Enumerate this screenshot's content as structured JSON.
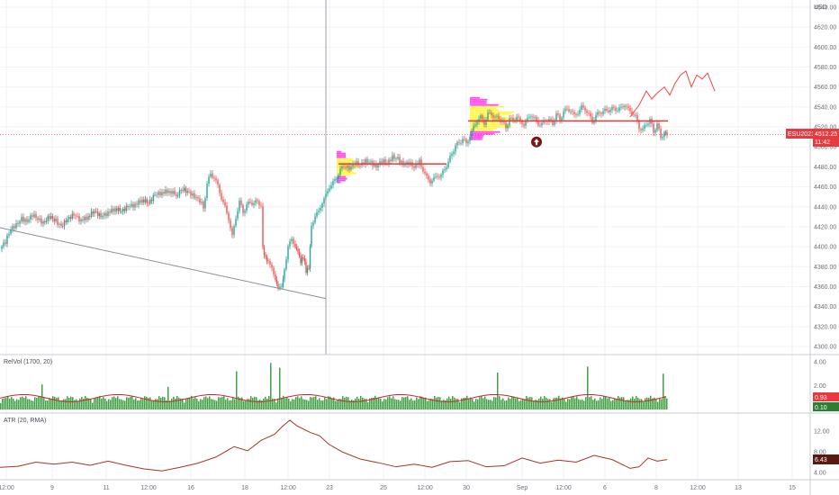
{
  "chart_data": [
    {
      "type": "candlestick",
      "symbol": "ESU2021",
      "currency": "USD",
      "last_price": "4512.25",
      "countdown": "11:42",
      "ylim": [
        4290,
        4650
      ],
      "y_ticks": [
        4300,
        4320,
        4340,
        4360,
        4380,
        4400,
        4420,
        4440,
        4460,
        4480,
        4500,
        4520,
        4540,
        4560,
        4580,
        4600,
        4620,
        4640
      ],
      "x_ticks": [
        "12:00",
        "9",
        "11",
        "12:00",
        "16",
        "18",
        "12:00",
        "23",
        "25",
        "12:00",
        "30",
        "Sep",
        "12:00",
        "6",
        "8",
        "12:00",
        "13",
        "15"
      ],
      "price_path": [
        [
          0,
          4398
        ],
        [
          6,
          4405
        ],
        [
          12,
          4418
        ],
        [
          18,
          4422
        ],
        [
          24,
          4428
        ],
        [
          30,
          4425
        ],
        [
          36,
          4432
        ],
        [
          42,
          4428
        ],
        [
          48,
          4424
        ],
        [
          55,
          4430
        ],
        [
          62,
          4426
        ],
        [
          68,
          4420
        ],
        [
          75,
          4428
        ],
        [
          82,
          4432
        ],
        [
          90,
          4426
        ],
        [
          98,
          4430
        ],
        [
          105,
          4436
        ],
        [
          112,
          4430
        ],
        [
          120,
          4434
        ],
        [
          128,
          4438
        ],
        [
          135,
          4436
        ],
        [
          142,
          4440
        ],
        [
          150,
          4442
        ],
        [
          158,
          4447
        ],
        [
          165,
          4444
        ],
        [
          172,
          4452
        ],
        [
          180,
          4454
        ],
        [
          188,
          4456
        ],
        [
          196,
          4452
        ],
        [
          203,
          4458
        ],
        [
          210,
          4454
        ],
        [
          216,
          4450
        ],
        [
          222,
          4446
        ],
        [
          226,
          4440
        ],
        [
          230,
          4462
        ],
        [
          234,
          4474
        ],
        [
          238,
          4468
        ],
        [
          242,
          4462
        ],
        [
          246,
          4448
        ],
        [
          250,
          4440
        ],
        [
          254,
          4428
        ],
        [
          258,
          4410
        ],
        [
          262,
          4430
        ],
        [
          266,
          4444
        ],
        [
          270,
          4436
        ],
        [
          274,
          4440
        ],
        [
          278,
          4446
        ],
        [
          282,
          4442
        ],
        [
          286,
          4447
        ],
        [
          290,
          4440
        ],
        [
          292,
          4398
        ],
        [
          295,
          4388
        ],
        [
          298,
          4384
        ],
        [
          302,
          4378
        ],
        [
          306,
          4368
        ],
        [
          309,
          4357
        ],
        [
          313,
          4360
        ],
        [
          316,
          4378
        ],
        [
          320,
          4400
        ],
        [
          324,
          4408
        ],
        [
          328,
          4400
        ],
        [
          331,
          4394
        ],
        [
          334,
          4384
        ],
        [
          337,
          4390
        ],
        [
          340,
          4376
        ],
        [
          343,
          4380
        ],
        [
          346,
          4422
        ],
        [
          350,
          4430
        ],
        [
          354,
          4436
        ],
        [
          358,
          4444
        ],
        [
          362,
          4452
        ],
        [
          366,
          4460
        ],
        [
          370,
          4464
        ],
        [
          374,
          4470
        ],
        [
          378,
          4476
        ],
        [
          382,
          4482
        ],
        [
          388,
          4478
        ],
        [
          394,
          4484
        ],
        [
          400,
          4482
        ],
        [
          406,
          4486
        ],
        [
          412,
          4484
        ],
        [
          418,
          4480
        ],
        [
          424,
          4486
        ],
        [
          430,
          4484
        ],
        [
          436,
          4490
        ],
        [
          442,
          4488
        ],
        [
          448,
          4482
        ],
        [
          454,
          4484
        ],
        [
          460,
          4480
        ],
        [
          466,
          4486
        ],
        [
          470,
          4476
        ],
        [
          474,
          4470
        ],
        [
          478,
          4465
        ],
        [
          482,
          4468
        ],
        [
          486,
          4472
        ],
        [
          490,
          4470
        ],
        [
          494,
          4480
        ],
        [
          498,
          4483
        ],
        [
          502,
          4495
        ],
        [
          506,
          4500
        ],
        [
          510,
          4505
        ],
        [
          514,
          4507
        ],
        [
          518,
          4504
        ],
        [
          522,
          4510
        ],
        [
          526,
          4520
        ],
        [
          530,
          4526
        ],
        [
          534,
          4530
        ],
        [
          538,
          4524
        ],
        [
          542,
          4532
        ],
        [
          546,
          4534
        ],
        [
          550,
          4528
        ],
        [
          554,
          4530
        ],
        [
          558,
          4524
        ],
        [
          562,
          4520
        ],
        [
          566,
          4528
        ],
        [
          570,
          4526
        ],
        [
          574,
          4530
        ],
        [
          578,
          4526
        ],
        [
          582,
          4522
        ],
        [
          586,
          4528
        ],
        [
          590,
          4532
        ],
        [
          594,
          4528
        ],
        [
          598,
          4524
        ],
        [
          602,
          4522
        ],
        [
          606,
          4528
        ],
        [
          610,
          4526
        ],
        [
          614,
          4524
        ],
        [
          618,
          4532
        ],
        [
          622,
          4528
        ],
        [
          626,
          4535
        ],
        [
          630,
          4538
        ],
        [
          634,
          4536
        ],
        [
          638,
          4532
        ],
        [
          642,
          4534
        ],
        [
          646,
          4540
        ],
        [
          650,
          4538
        ],
        [
          654,
          4532
        ],
        [
          658,
          4526
        ],
        [
          662,
          4530
        ],
        [
          666,
          4536
        ],
        [
          670,
          4534
        ],
        [
          674,
          4538
        ],
        [
          678,
          4536
        ],
        [
          682,
          4540
        ],
        [
          686,
          4536
        ],
        [
          690,
          4540
        ],
        [
          694,
          4542
        ],
        [
          698,
          4538
        ],
        [
          702,
          4534
        ],
        [
          706,
          4530
        ],
        [
          710,
          4520
        ],
        [
          714,
          4516
        ],
        [
          718,
          4524
        ],
        [
          722,
          4526
        ],
        [
          726,
          4516
        ],
        [
          730,
          4522
        ],
        [
          734,
          4510
        ],
        [
          738,
          4514
        ],
        [
          741,
          4512
        ]
      ],
      "forecast_path": [
        [
          700,
          4530
        ],
        [
          710,
          4542
        ],
        [
          718,
          4556
        ],
        [
          724,
          4548
        ],
        [
          730,
          4554
        ],
        [
          738,
          4560
        ],
        [
          744,
          4552
        ],
        [
          750,
          4564
        ],
        [
          756,
          4572
        ],
        [
          762,
          4576
        ],
        [
          768,
          4560
        ],
        [
          774,
          4572
        ],
        [
          780,
          4568
        ],
        [
          786,
          4574
        ],
        [
          794,
          4556
        ]
      ],
      "trendline": [
        [
          0,
          4419
        ],
        [
          362,
          4348
        ]
      ],
      "horizontal_levels": [
        {
          "x": [
            376,
            496
          ],
          "y": 4483
        },
        {
          "x": [
            520,
            742
          ],
          "y": 4526
        }
      ],
      "volume_profiles": [
        {
          "x": 374,
          "y_range": [
            4464,
            4496
          ]
        },
        {
          "x": 522,
          "y_range": [
            4506,
            4550
          ]
        }
      ],
      "up_arrow_marker": {
        "x": 596,
        "y": 4505
      },
      "vertical_cursor_x": 362
    },
    {
      "type": "bar",
      "title": "RelVol (1700, 20)",
      "ylim": [
        0,
        4.6
      ],
      "y_ticks": [
        2.0,
        4.0
      ],
      "last_values": [
        "0.93",
        "0.10"
      ],
      "spikes": [
        [
          46,
          2.1
        ],
        [
          186,
          1.9
        ],
        [
          262,
          3.2
        ],
        [
          300,
          3.9
        ],
        [
          310,
          3.5
        ],
        [
          552,
          3.1
        ],
        [
          652,
          3.6
        ],
        [
          736,
          3.0
        ]
      ]
    },
    {
      "type": "line",
      "title": "ATR (20, RMA)",
      "ylim": [
        2.2,
        15.4
      ],
      "y_ticks": [
        4.0,
        8.0,
        12.0
      ],
      "last_value": "6.43",
      "values": [
        [
          0,
          5.0
        ],
        [
          20,
          5.2
        ],
        [
          40,
          6.0
        ],
        [
          60,
          5.6
        ],
        [
          80,
          6.0
        ],
        [
          100,
          5.4
        ],
        [
          120,
          6.2
        ],
        [
          140,
          5.4
        ],
        [
          160,
          4.7
        ],
        [
          180,
          4.3
        ],
        [
          200,
          5.0
        ],
        [
          220,
          5.8
        ],
        [
          240,
          7.0
        ],
        [
          260,
          9.0
        ],
        [
          275,
          8.2
        ],
        [
          290,
          10.2
        ],
        [
          305,
          11.4
        ],
        [
          315,
          13.1
        ],
        [
          322,
          14.1
        ],
        [
          330,
          13.0
        ],
        [
          345,
          11.7
        ],
        [
          355,
          11.1
        ],
        [
          365,
          9.5
        ],
        [
          380,
          8.0
        ],
        [
          400,
          6.6
        ],
        [
          420,
          5.9
        ],
        [
          440,
          5.1
        ],
        [
          460,
          5.6
        ],
        [
          480,
          5.0
        ],
        [
          500,
          6.1
        ],
        [
          520,
          6.3
        ],
        [
          540,
          5.1
        ],
        [
          560,
          5.3
        ],
        [
          580,
          6.8
        ],
        [
          600,
          5.8
        ],
        [
          620,
          6.4
        ],
        [
          640,
          6.0
        ],
        [
          660,
          7.3
        ],
        [
          680,
          6.5
        ],
        [
          700,
          4.8
        ],
        [
          710,
          5.1
        ],
        [
          720,
          6.8
        ],
        [
          730,
          6.2
        ],
        [
          741,
          6.5
        ]
      ]
    }
  ]
}
